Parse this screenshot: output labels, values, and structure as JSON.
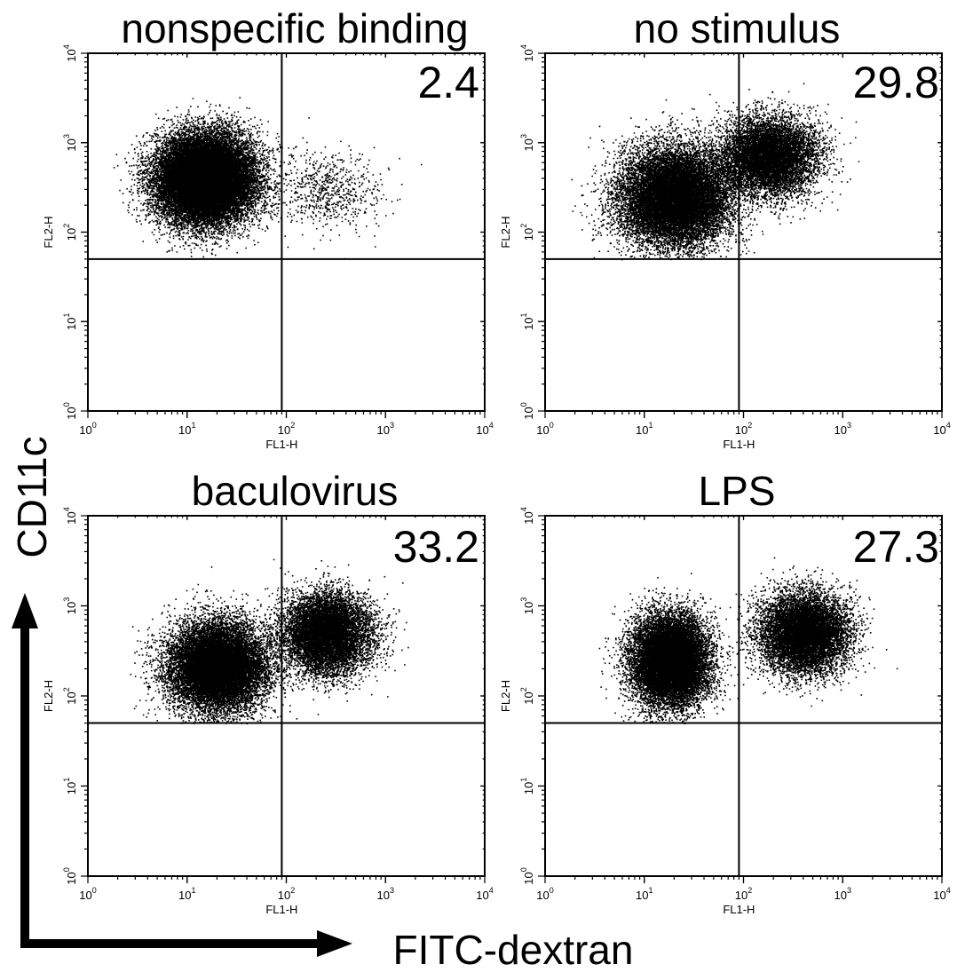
{
  "figure": {
    "y_axis_label": "CD11c",
    "x_axis_label": "FITC-dextran"
  },
  "chart_data": [
    {
      "type": "scatter",
      "title": "nonspecific binding",
      "quadrant_value": "2.4",
      "xlabel": "FL1-H",
      "ylabel": "FL2-H",
      "x_scale": "log",
      "y_scale": "log",
      "xlim": [
        1,
        10000
      ],
      "ylim": [
        1,
        10000
      ],
      "x_gate": 90,
      "y_gate": 50,
      "x_ticks": [
        {
          "base": "10",
          "exp": "0"
        },
        {
          "base": "10",
          "exp": "1"
        },
        {
          "base": "10",
          "exp": "2"
        },
        {
          "base": "10",
          "exp": "3"
        },
        {
          "base": "10",
          "exp": "4"
        }
      ],
      "y_ticks": [
        {
          "base": "10",
          "exp": "0"
        },
        {
          "base": "10",
          "exp": "1"
        },
        {
          "base": "10",
          "exp": "2"
        },
        {
          "base": "10",
          "exp": "3"
        },
        {
          "base": "10",
          "exp": "4"
        }
      ],
      "populations": [
        {
          "x_center": 15,
          "y_center": 400,
          "x_spread_decades": 0.45,
          "y_spread_decades": 0.45,
          "fraction": 0.97
        },
        {
          "x_center": 250,
          "y_center": 300,
          "x_spread_decades": 0.5,
          "y_spread_decades": 0.4,
          "fraction": 0.03
        }
      ]
    },
    {
      "type": "scatter",
      "title": "no stimulus",
      "quadrant_value": "29.8",
      "xlabel": "FL1-H",
      "ylabel": "FL2-H",
      "x_scale": "log",
      "y_scale": "log",
      "xlim": [
        1,
        10000
      ],
      "ylim": [
        1,
        10000
      ],
      "x_gate": 90,
      "y_gate": 50,
      "x_ticks": [
        {
          "base": "10",
          "exp": "0"
        },
        {
          "base": "10",
          "exp": "1"
        },
        {
          "base": "10",
          "exp": "2"
        },
        {
          "base": "10",
          "exp": "3"
        },
        {
          "base": "10",
          "exp": "4"
        }
      ],
      "y_ticks": [
        {
          "base": "10",
          "exp": "0"
        },
        {
          "base": "10",
          "exp": "1"
        },
        {
          "base": "10",
          "exp": "2"
        },
        {
          "base": "10",
          "exp": "3"
        },
        {
          "base": "10",
          "exp": "4"
        }
      ],
      "populations": [
        {
          "x_center": 20,
          "y_center": 250,
          "x_spread_decades": 0.5,
          "y_spread_decades": 0.5,
          "fraction": 0.65
        },
        {
          "x_center": 180,
          "y_center": 700,
          "x_spread_decades": 0.45,
          "y_spread_decades": 0.4,
          "fraction": 0.35
        }
      ]
    },
    {
      "type": "scatter",
      "title": "baculovirus",
      "quadrant_value": "33.2",
      "xlabel": "FL1-H",
      "ylabel": "FL2-H",
      "x_scale": "log",
      "y_scale": "log",
      "xlim": [
        1,
        10000
      ],
      "ylim": [
        1,
        10000
      ],
      "x_gate": 90,
      "y_gate": 50,
      "x_ticks": [
        {
          "base": "10",
          "exp": "0"
        },
        {
          "base": "10",
          "exp": "1"
        },
        {
          "base": "10",
          "exp": "2"
        },
        {
          "base": "10",
          "exp": "3"
        },
        {
          "base": "10",
          "exp": "4"
        }
      ],
      "y_ticks": [
        {
          "base": "10",
          "exp": "0"
        },
        {
          "base": "10",
          "exp": "1"
        },
        {
          "base": "10",
          "exp": "2"
        },
        {
          "base": "10",
          "exp": "3"
        },
        {
          "base": "10",
          "exp": "4"
        }
      ],
      "populations": [
        {
          "x_center": 20,
          "y_center": 220,
          "x_spread_decades": 0.45,
          "y_spread_decades": 0.45,
          "fraction": 0.62
        },
        {
          "x_center": 250,
          "y_center": 500,
          "x_spread_decades": 0.4,
          "y_spread_decades": 0.4,
          "fraction": 0.38
        }
      ]
    },
    {
      "type": "scatter",
      "title": "LPS",
      "quadrant_value": "27.3",
      "xlabel": "FL1-H",
      "ylabel": "FL2-H",
      "x_scale": "log",
      "y_scale": "log",
      "xlim": [
        1,
        10000
      ],
      "ylim": [
        1,
        10000
      ],
      "x_gate": 90,
      "y_gate": 50,
      "x_ticks": [
        {
          "base": "10",
          "exp": "0"
        },
        {
          "base": "10",
          "exp": "1"
        },
        {
          "base": "10",
          "exp": "2"
        },
        {
          "base": "10",
          "exp": "3"
        },
        {
          "base": "10",
          "exp": "4"
        }
      ],
      "y_ticks": [
        {
          "base": "10",
          "exp": "0"
        },
        {
          "base": "10",
          "exp": "1"
        },
        {
          "base": "10",
          "exp": "2"
        },
        {
          "base": "10",
          "exp": "3"
        },
        {
          "base": "10",
          "exp": "4"
        }
      ],
      "populations": [
        {
          "x_center": 18,
          "y_center": 250,
          "x_spread_decades": 0.35,
          "y_spread_decades": 0.45,
          "fraction": 0.6
        },
        {
          "x_center": 400,
          "y_center": 500,
          "x_spread_decades": 0.4,
          "y_spread_decades": 0.4,
          "fraction": 0.4
        }
      ]
    }
  ]
}
